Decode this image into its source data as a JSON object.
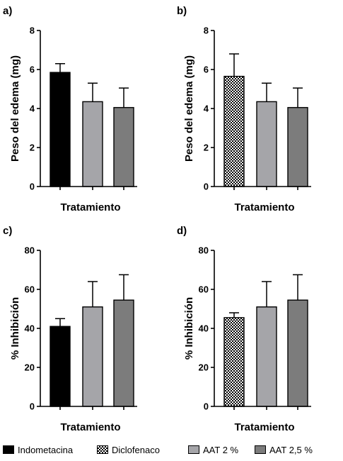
{
  "chart_data": [
    {
      "panel": "a)",
      "type": "bar",
      "xlabel": "Tratamiento",
      "ylabel": "Peso del edema (mg)",
      "ylim": [
        0,
        8
      ],
      "yticks": [
        0,
        2,
        4,
        6,
        8
      ],
      "grid": false,
      "bars": [
        {
          "legend_index": 0,
          "value": 5.85,
          "error": 0.45
        },
        {
          "legend_index": 2,
          "value": 4.35,
          "error": 0.95
        },
        {
          "legend_index": 3,
          "value": 4.05,
          "error": 1.0
        }
      ]
    },
    {
      "panel": "b)",
      "type": "bar",
      "xlabel": "Tratamiento",
      "ylabel": "Peso del edema (mg)",
      "ylim": [
        0,
        8
      ],
      "yticks": [
        0,
        2,
        4,
        6,
        8
      ],
      "grid": false,
      "bars": [
        {
          "legend_index": 1,
          "value": 5.65,
          "error": 1.15
        },
        {
          "legend_index": 2,
          "value": 4.35,
          "error": 0.95
        },
        {
          "legend_index": 3,
          "value": 4.05,
          "error": 1.0
        }
      ]
    },
    {
      "panel": "c)",
      "type": "bar",
      "xlabel": "Tratamiento",
      "ylabel": "% Inhibición",
      "ylim": [
        0,
        80
      ],
      "yticks": [
        0,
        20,
        40,
        60,
        80
      ],
      "grid": false,
      "bars": [
        {
          "legend_index": 0,
          "value": 41,
          "error": 4
        },
        {
          "legend_index": 2,
          "value": 51,
          "error": 13
        },
        {
          "legend_index": 3,
          "value": 54.5,
          "error": 13
        }
      ]
    },
    {
      "panel": "d)",
      "type": "bar",
      "xlabel": "Tratamiento",
      "ylabel": "% Inhibición",
      "ylim": [
        0,
        80
      ],
      "yticks": [
        0,
        20,
        40,
        60,
        80
      ],
      "grid": false,
      "bars": [
        {
          "legend_index": 1,
          "value": 45.5,
          "error": 2.5
        },
        {
          "legend_index": 2,
          "value": 51,
          "error": 13
        },
        {
          "legend_index": 3,
          "value": 54.5,
          "error": 13
        }
      ]
    }
  ],
  "legend": [
    {
      "label": "Indometacina",
      "fill": "#000000",
      "pattern": "solid"
    },
    {
      "label": "Diclofenaco",
      "fill": "#000000",
      "pattern": "checkered"
    },
    {
      "label": "AAT 2 %",
      "fill": "#a5a5a9",
      "pattern": "solid"
    },
    {
      "label": "AAT 2,5 %",
      "fill": "#7c7c7c",
      "pattern": "solid"
    }
  ]
}
